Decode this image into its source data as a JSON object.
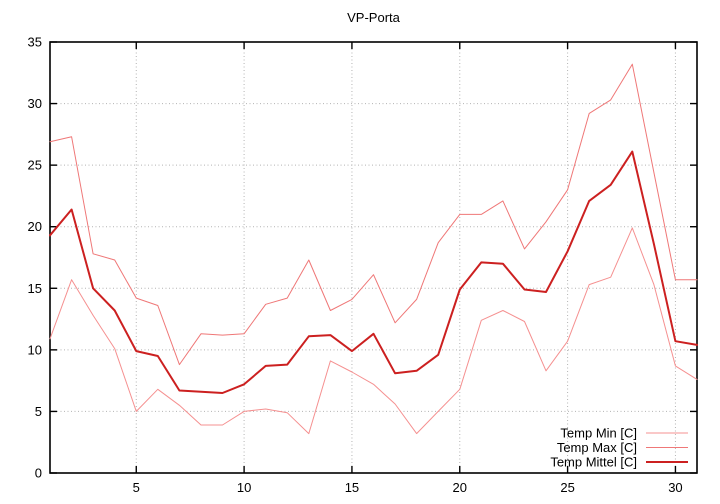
{
  "title": "VP-Porta",
  "colors": {
    "series_min": "#f59090",
    "series_max": "#ef7777",
    "series_mittel": "#cc2020",
    "grid": "#b3b3b3",
    "border": "#000000",
    "text": "#000000",
    "background": "#ffffff"
  },
  "chart_data": {
    "type": "line",
    "title": "VP-Porta",
    "xlabel": "",
    "ylabel": "",
    "xlim": [
      1,
      31
    ],
    "ylim": [
      0,
      35
    ],
    "x_ticks": [
      5,
      10,
      15,
      20,
      25,
      30
    ],
    "y_ticks": [
      0,
      5,
      10,
      15,
      20,
      25,
      30,
      35
    ],
    "grid": true,
    "legend_position": "bottom-right",
    "x": [
      1,
      2,
      3,
      4,
      5,
      6,
      7,
      8,
      9,
      10,
      11,
      12,
      13,
      14,
      15,
      16,
      17,
      18,
      19,
      20,
      21,
      22,
      23,
      24,
      25,
      26,
      27,
      28,
      29,
      30,
      31
    ],
    "series": [
      {
        "name": "Temp Min [C]",
        "color": "#f59090",
        "line_width": 1,
        "values": [
          10.9,
          15.7,
          12.8,
          10.1,
          5.0,
          6.8,
          5.5,
          3.9,
          3.9,
          5.0,
          5.2,
          4.9,
          3.2,
          9.1,
          8.2,
          7.2,
          5.6,
          3.2,
          5.0,
          6.8,
          12.4,
          13.2,
          12.3,
          8.3,
          10.7,
          15.3,
          15.9,
          19.9,
          15.3,
          8.7,
          7.6
        ]
      },
      {
        "name": "Temp Max [C]",
        "color": "#ef7777",
        "line_width": 1,
        "values": [
          26.9,
          27.3,
          17.8,
          17.3,
          14.2,
          13.6,
          8.8,
          11.3,
          11.2,
          11.3,
          13.7,
          14.2,
          17.3,
          13.2,
          14.1,
          16.1,
          12.2,
          14.1,
          18.7,
          21.0,
          21.0,
          22.1,
          18.2,
          20.4,
          23.0,
          29.2,
          30.3,
          33.2,
          24.4,
          15.7,
          15.7
        ]
      },
      {
        "name": "Temp Mittel [C]",
        "color": "#cc2020",
        "line_width": 2,
        "values": [
          19.3,
          21.4,
          15.0,
          13.2,
          9.9,
          9.5,
          6.7,
          6.6,
          6.5,
          7.2,
          8.7,
          8.8,
          11.1,
          11.2,
          9.9,
          11.3,
          8.1,
          8.3,
          9.6,
          14.9,
          17.1,
          17.0,
          14.9,
          14.7,
          18.0,
          22.1,
          23.4,
          26.1,
          18.6,
          10.7,
          10.4
        ]
      }
    ]
  }
}
